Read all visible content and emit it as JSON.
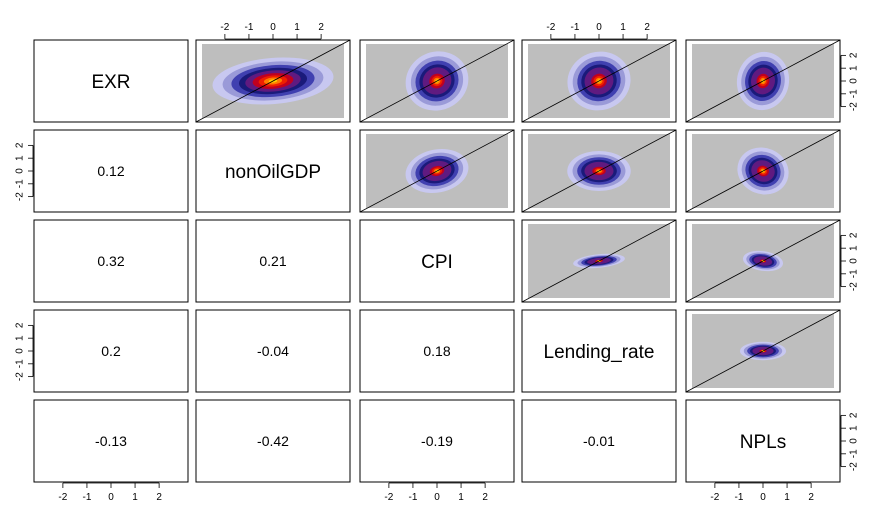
{
  "chart_data": {
    "type": "scatter",
    "variables": [
      "EXR",
      "nonOilGDP",
      "CPI",
      "Lending_rate",
      "NPLs"
    ],
    "layout": "pairs",
    "upper_panels": "smoothed density scatter with y=x reference line",
    "lower_panels": "correlation coefficient text",
    "axis_range": [
      -3.2,
      3.2
    ],
    "ticks": [
      -2,
      -1,
      0,
      1,
      2
    ],
    "tick_labels": [
      "-2",
      "-1",
      "0",
      "1",
      "2"
    ],
    "correlations": [
      {
        "row": "nonOilGDP",
        "col": "EXR",
        "value": "0.12"
      },
      {
        "row": "CPI",
        "col": "EXR",
        "value": "0.32"
      },
      {
        "row": "CPI",
        "col": "nonOilGDP",
        "value": "0.21"
      },
      {
        "row": "Lending_rate",
        "col": "EXR",
        "value": "0.2"
      },
      {
        "row": "Lending_rate",
        "col": "nonOilGDP",
        "value": "-0.04"
      },
      {
        "row": "Lending_rate",
        "col": "CPI",
        "value": "0.18"
      },
      {
        "row": "NPLs",
        "col": "EXR",
        "value": "-0.13"
      },
      {
        "row": "NPLs",
        "col": "nonOilGDP",
        "value": "-0.42"
      },
      {
        "row": "NPLs",
        "col": "CPI",
        "value": "-0.19"
      },
      {
        "row": "NPLs",
        "col": "Lending_rate",
        "value": "-0.01"
      }
    ],
    "density_panels": [
      {
        "row": "EXR",
        "col": "nonOilGDP",
        "sd_x": 1.05,
        "sd_y": 0.75,
        "tilt": 0.08,
        "core": 0.95
      },
      {
        "row": "EXR",
        "col": "CPI",
        "sd_x": 0.55,
        "sd_y": 0.95,
        "tilt": 0.45,
        "core": 0.7
      },
      {
        "row": "EXR",
        "col": "Lending_rate",
        "sd_x": 0.55,
        "sd_y": 0.95,
        "tilt": 0.3,
        "core": 0.7
      },
      {
        "row": "EXR",
        "col": "NPLs",
        "sd_x": 0.45,
        "sd_y": 0.95,
        "tilt": -0.2,
        "core": 0.7
      },
      {
        "row": "nonOilGDP",
        "col": "CPI",
        "sd_x": 0.55,
        "sd_y": 0.7,
        "tilt": 0.2,
        "core": 0.65
      },
      {
        "row": "nonOilGDP",
        "col": "Lending_rate",
        "sd_x": 0.55,
        "sd_y": 0.65,
        "tilt": 0.0,
        "core": 0.6
      },
      {
        "row": "nonOilGDP",
        "col": "NPLs",
        "sd_x": 0.45,
        "sd_y": 0.75,
        "tilt": -0.4,
        "core": 0.65
      },
      {
        "row": "CPI",
        "col": "Lending_rate",
        "sd_x": 0.45,
        "sd_y": 0.22,
        "tilt": 0.1,
        "core": 0.45
      },
      {
        "row": "CPI",
        "col": "NPLs",
        "sd_x": 0.35,
        "sd_y": 0.32,
        "tilt": -0.15,
        "core": 0.45
      },
      {
        "row": "Lending_rate",
        "col": "NPLs",
        "sd_x": 0.4,
        "sd_y": 0.3,
        "tilt": 0.0,
        "core": 0.45
      }
    ],
    "colors": {
      "background_cloud": "#bebebe",
      "ring_light": "#c8c8f0",
      "ring_mid": "#9a9ad8",
      "ring_blue": "#4040b0",
      "ring_navy": "#1a1a7a",
      "ring_purple": "#601a80",
      "ring_crimson": "#c00020",
      "ring_red": "#ee2000",
      "ring_orange": "#ff7a00",
      "ring_yellow": "#ffd000",
      "reference_line": "#000000",
      "panel_border": "#000000"
    }
  }
}
